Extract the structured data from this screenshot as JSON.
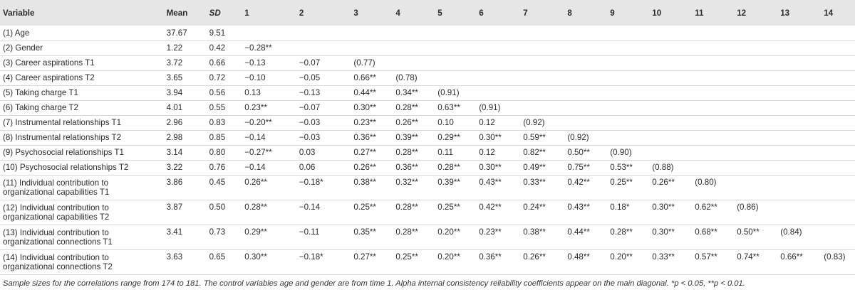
{
  "table": {
    "headers": [
      "Variable",
      "Mean",
      "SD",
      "1",
      "2",
      "3",
      "4",
      "5",
      "6",
      "7",
      "8",
      "9",
      "10",
      "11",
      "12",
      "13",
      "14"
    ],
    "rows": [
      {
        "variable": "(1) Age",
        "mean": "37.67",
        "sd": "9.51",
        "cells": [
          "",
          "",
          "",
          "",
          "",
          "",
          "",
          "",
          "",
          "",
          "",
          "",
          "",
          ""
        ]
      },
      {
        "variable": "(2) Gender",
        "mean": "1.22",
        "sd": "0.42",
        "cells": [
          "−0.28**",
          "",
          "",
          "",
          "",
          "",
          "",
          "",
          "",
          "",
          "",
          "",
          "",
          ""
        ]
      },
      {
        "variable": "(3) Career aspirations T1",
        "mean": "3.72",
        "sd": "0.66",
        "cells": [
          "−0.13",
          "−0.07",
          "(0.77)",
          "",
          "",
          "",
          "",
          "",
          "",
          "",
          "",
          "",
          "",
          ""
        ]
      },
      {
        "variable": "(4) Career aspirations T2",
        "mean": "3.65",
        "sd": "0.72",
        "cells": [
          "−0.10",
          "−0.05",
          "0.66**",
          "(0.78)",
          "",
          "",
          "",
          "",
          "",
          "",
          "",
          "",
          "",
          ""
        ]
      },
      {
        "variable": "(5) Taking charge T1",
        "mean": "3.94",
        "sd": "0.56",
        "cells": [
          "0.13",
          "−0.13",
          "0.44**",
          "0.34**",
          "(0.91)",
          "",
          "",
          "",
          "",
          "",
          "",
          "",
          "",
          ""
        ]
      },
      {
        "variable": "(6) Taking charge T2",
        "mean": "4.01",
        "sd": "0.55",
        "cells": [
          "0.23**",
          "−0.07",
          "0.30**",
          "0.28**",
          "0.63**",
          "(0.91)",
          "",
          "",
          "",
          "",
          "",
          "",
          "",
          ""
        ]
      },
      {
        "variable": "(7) Instrumental relationships T1",
        "mean": "2.96",
        "sd": "0.83",
        "cells": [
          "−0.20**",
          "−0.03",
          "0.23**",
          "0.26**",
          "0.10",
          "0.12",
          "(0.92)",
          "",
          "",
          "",
          "",
          "",
          "",
          ""
        ]
      },
      {
        "variable": "(8) Instrumental relationships T2",
        "mean": "2.98",
        "sd": "0.85",
        "cells": [
          "−0.14",
          "−0.03",
          "0.36**",
          "0.39**",
          "0.29**",
          "0.30**",
          "0.59**",
          "(0.92)",
          "",
          "",
          "",
          "",
          "",
          ""
        ]
      },
      {
        "variable": "(9) Psychosocial relationships T1",
        "mean": "3.14",
        "sd": "0.80",
        "cells": [
          "−0.27**",
          "0.03",
          "0.27**",
          "0.28**",
          "0.11",
          "0.12",
          "0.82**",
          "0.50**",
          "(0.90)",
          "",
          "",
          "",
          "",
          ""
        ]
      },
      {
        "variable": "(10) Psychosocial relationships T2",
        "mean": "3.22",
        "sd": "0.76",
        "cells": [
          "−0.14",
          "0.06",
          "0.26**",
          "0.36**",
          "0.28**",
          "0.30**",
          "0.49**",
          "0.75**",
          "0.53**",
          "(0.88)",
          "",
          "",
          "",
          ""
        ]
      },
      {
        "variable": "(11) Individual contribution to organizational capabilities T1",
        "mean": "3.86",
        "sd": "0.45",
        "cells": [
          "0.26**",
          "−0.18*",
          "0.38**",
          "0.32**",
          "0.39**",
          "0.43**",
          "0.33**",
          "0.42**",
          "0.25**",
          "0.26**",
          "(0.80)",
          "",
          "",
          ""
        ]
      },
      {
        "variable": "(12) Individual contribution to organizational capabilities T2",
        "mean": "3.87",
        "sd": "0.50",
        "cells": [
          "0.28**",
          "−0.14",
          "0.25**",
          "0.28**",
          "0.25**",
          "0.42**",
          "0.24**",
          "0.43**",
          "0.18*",
          "0.30**",
          "0.62**",
          "(0.86)",
          "",
          ""
        ]
      },
      {
        "variable": "(13) Individual contribution to organizational connections T1",
        "mean": "3.41",
        "sd": "0.73",
        "cells": [
          "0.29**",
          "−0.11",
          "0.35**",
          "0.28**",
          "0.20**",
          "0.23**",
          "0.38**",
          "0.44**",
          "0.28**",
          "0.30**",
          "0.68**",
          "0.50**",
          "(0.84)",
          ""
        ]
      },
      {
        "variable": "(14) Individual contribution to organizational connections T2",
        "mean": "3.63",
        "sd": "0.65",
        "cells": [
          "0.30**",
          "−0.18*",
          "0.27**",
          "0.25**",
          "0.20**",
          "0.36**",
          "0.26**",
          "0.48**",
          "0.20**",
          "0.33**",
          "0.57**",
          "0.74**",
          "0.66**",
          "(0.83)"
        ]
      }
    ]
  },
  "note": "Sample sizes for the correlations range from 174 to 181. The control variables age and gender are from time 1. Alpha internal consistency reliability coefficients appear on the main diagonal. *p < 0.05, **p < 0.01."
}
